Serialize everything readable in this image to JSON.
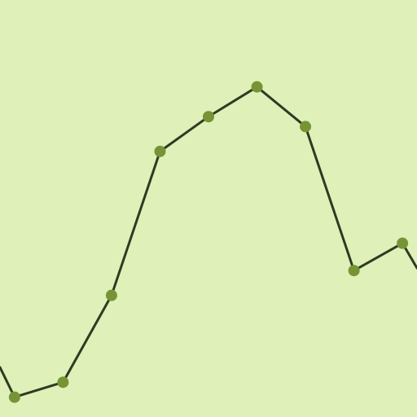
{
  "colors": {
    "background": "#dff0b8",
    "line": "#2f3a22",
    "marker": "#769436"
  },
  "chart_data": {
    "type": "line",
    "title": "",
    "xlabel": "",
    "ylabel": "",
    "grid": false,
    "x": [
      1,
      2,
      3,
      4,
      5,
      6,
      7,
      8,
      9
    ],
    "series": [
      {
        "values": [
          8,
          14,
          49,
          107,
          121,
          133,
          117,
          59,
          70
        ]
      }
    ],
    "xlim": [
      0.7,
      9.3
    ],
    "ylim": [
      0,
      168
    ],
    "clipped_neighbors": {
      "left_edge_value": 20,
      "right_edge_value": 60
    }
  }
}
